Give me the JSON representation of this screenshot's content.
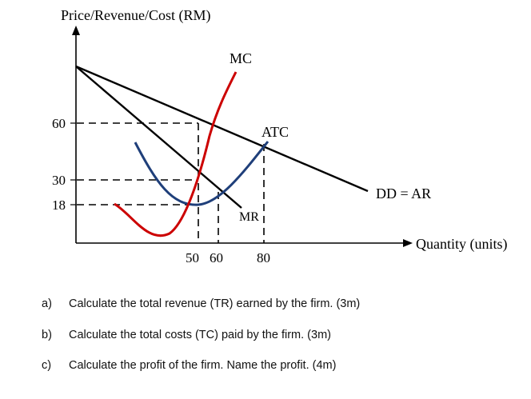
{
  "diagram": {
    "y_axis_label": "Price/Revenue/Cost (RM)",
    "x_axis_label": "Quantity (units)",
    "y_ticks": [
      "60",
      "30",
      "18"
    ],
    "x_ticks": [
      "50",
      "60",
      "80"
    ],
    "curves": {
      "mc": "MC",
      "atc": "ATC",
      "mr": "MR",
      "dd": "DD = AR"
    },
    "colors": {
      "mc": "#cc0000",
      "atc": "#1f3f7a",
      "demand": "#000000"
    }
  },
  "questions": [
    {
      "letter": "a)",
      "text": "Calculate the total revenue (TR) earned by the firm. (3m)"
    },
    {
      "letter": "b)",
      "text": "Calculate the total costs (TC) paid by the firm. (3m)"
    },
    {
      "letter": "c)",
      "text": "Calculate the profit of the firm. Name the profit. (4m)"
    }
  ]
}
